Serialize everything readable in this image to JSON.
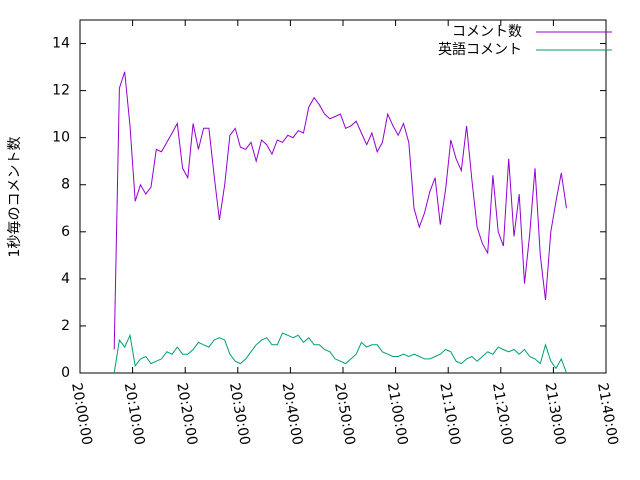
{
  "chart_data": {
    "type": "line",
    "y_label": "1秒毎のコメント数",
    "x": [
      "20:06:30",
      "20:07:30",
      "20:08:30",
      "20:09:30",
      "20:10:30",
      "20:11:30",
      "20:12:30",
      "20:13:30",
      "20:14:30",
      "20:15:30",
      "20:16:30",
      "20:17:30",
      "20:18:30",
      "20:19:30",
      "20:20:30",
      "20:21:30",
      "20:22:30",
      "20:23:30",
      "20:24:30",
      "20:25:30",
      "20:26:30",
      "20:27:30",
      "20:28:30",
      "20:29:30",
      "20:30:30",
      "20:31:30",
      "20:32:30",
      "20:33:30",
      "20:34:30",
      "20:35:30",
      "20:36:30",
      "20:37:30",
      "20:38:30",
      "20:39:30",
      "20:40:30",
      "20:41:30",
      "20:42:30",
      "20:43:30",
      "20:44:30",
      "20:45:30",
      "20:46:30",
      "20:47:30",
      "20:48:30",
      "20:49:30",
      "20:50:30",
      "20:51:30",
      "20:52:30",
      "20:53:30",
      "20:54:30",
      "20:55:30",
      "20:56:30",
      "20:57:30",
      "20:58:30",
      "20:59:30",
      "21:00:30",
      "21:01:30",
      "21:02:30",
      "21:03:30",
      "21:04:30",
      "21:05:30",
      "21:06:30",
      "21:07:30",
      "21:08:30",
      "21:09:30",
      "21:10:30",
      "21:11:30",
      "21:12:30",
      "21:13:30",
      "21:14:30",
      "21:15:30",
      "21:16:30",
      "21:17:30",
      "21:18:30",
      "21:19:30",
      "21:20:30",
      "21:21:30",
      "21:22:30",
      "21:23:30",
      "21:24:30",
      "21:25:30",
      "21:26:30",
      "21:27:30",
      "21:28:30",
      "21:29:30",
      "21:30:30",
      "21:31:30",
      "21:32:30"
    ],
    "series": [
      {
        "name": "コメント数",
        "color": "#9400d3",
        "values": [
          1.0,
          12.1,
          12.8,
          10.5,
          7.3,
          8.0,
          7.6,
          7.9,
          9.5,
          9.4,
          9.8,
          10.2,
          10.6,
          8.7,
          8.3,
          10.6,
          9.5,
          10.4,
          10.4,
          8.4,
          6.5,
          8.0,
          10.1,
          10.4,
          9.6,
          9.5,
          9.8,
          9.0,
          9.9,
          9.7,
          9.3,
          9.9,
          9.8,
          10.1,
          10.0,
          10.3,
          10.2,
          11.3,
          11.7,
          11.4,
          11.0,
          10.8,
          10.9,
          11.0,
          10.4,
          10.5,
          10.7,
          10.2,
          9.7,
          10.2,
          9.4,
          9.8,
          11.0,
          10.5,
          10.1,
          10.6,
          9.8,
          7.0,
          6.2,
          6.8,
          7.7,
          8.3,
          6.3,
          7.8,
          9.9,
          9.1,
          8.6,
          10.5,
          8.2,
          6.2,
          5.5,
          5.1,
          8.4,
          6.0,
          5.4,
          9.1,
          5.8,
          7.6,
          3.8,
          5.9,
          8.7,
          5.0,
          3.1,
          6.0,
          7.3,
          8.5,
          7.0
        ]
      },
      {
        "name": "英語コメント",
        "color": "#009e73",
        "values": [
          0.0,
          1.4,
          1.1,
          1.6,
          0.3,
          0.6,
          0.7,
          0.4,
          0.5,
          0.6,
          0.9,
          0.8,
          1.1,
          0.8,
          0.8,
          1.0,
          1.3,
          1.2,
          1.1,
          1.4,
          1.5,
          1.4,
          0.8,
          0.5,
          0.4,
          0.6,
          0.9,
          1.2,
          1.4,
          1.5,
          1.2,
          1.2,
          1.7,
          1.6,
          1.5,
          1.6,
          1.3,
          1.5,
          1.2,
          1.2,
          1.0,
          0.9,
          0.6,
          0.5,
          0.4,
          0.6,
          0.8,
          1.3,
          1.1,
          1.2,
          1.2,
          0.9,
          0.8,
          0.7,
          0.7,
          0.8,
          0.7,
          0.8,
          0.7,
          0.6,
          0.6,
          0.7,
          0.8,
          1.0,
          0.9,
          0.5,
          0.4,
          0.6,
          0.7,
          0.5,
          0.7,
          0.9,
          0.8,
          1.1,
          1.0,
          0.9,
          1.0,
          0.8,
          1.0,
          0.7,
          0.6,
          0.4,
          1.2,
          0.5,
          0.2,
          0.6,
          0.0
        ]
      }
    ],
    "xlim": [
      "20:00:00",
      "21:40:00"
    ],
    "xticks": [
      "20:00:00",
      "20:10:00",
      "20:20:00",
      "20:30:00",
      "20:40:00",
      "20:50:00",
      "21:00:00",
      "21:10:00",
      "21:20:00",
      "21:30:00",
      "21:40:00"
    ],
    "ylim": [
      0,
      15
    ],
    "yticks": [
      0,
      2,
      4,
      6,
      8,
      10,
      12,
      14
    ],
    "legend": "top-right"
  }
}
